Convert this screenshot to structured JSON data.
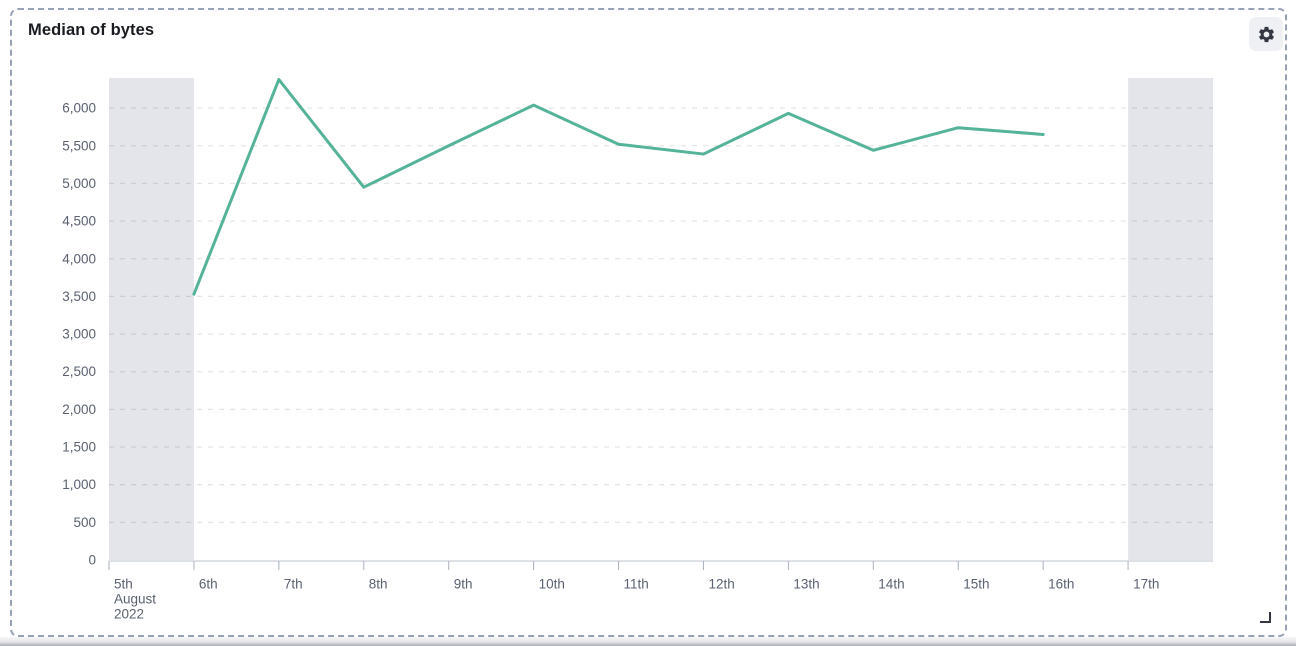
{
  "panel": {
    "title": "Median of bytes",
    "icons": {
      "settings": "gear-icon",
      "resize": "resize-handle"
    },
    "border_color": "#97a2b6"
  },
  "chart_data": {
    "type": "line",
    "title": "Median of bytes",
    "xlabel": "",
    "ylabel": "",
    "legend": "none",
    "grid": "horizontal-dashed",
    "x_categories": [
      "5th",
      "6th",
      "7th",
      "8th",
      "9th",
      "10th",
      "11th",
      "12th",
      "13th",
      "14th",
      "15th",
      "16th",
      "17th"
    ],
    "x_first_label_extra_lines": [
      "August",
      "2022"
    ],
    "y_ticks": [
      0,
      500,
      1000,
      1500,
      2000,
      2500,
      3000,
      3500,
      4000,
      4500,
      5000,
      5500,
      6000
    ],
    "ylim": [
      0,
      6400
    ],
    "series": [
      {
        "name": "Median of bytes",
        "color": "#54B399",
        "line_width": 3,
        "points": [
          {
            "x": "6th",
            "y": 3530
          },
          {
            "x": "7th",
            "y": 6380
          },
          {
            "x": "8th",
            "y": 4950
          },
          {
            "x": "9th",
            "y": 5500
          },
          {
            "x": "10th",
            "y": 6040
          },
          {
            "x": "11th",
            "y": 5520
          },
          {
            "x": "12th",
            "y": 5390
          },
          {
            "x": "13th",
            "y": 5930
          },
          {
            "x": "14th",
            "y": 5440
          },
          {
            "x": "15th",
            "y": 5740
          },
          {
            "x": "16th",
            "y": 5650
          }
        ]
      }
    ],
    "partial_bucket_bands": [
      {
        "from": "5th",
        "to": "6th"
      },
      {
        "from": "17th",
        "to": "end"
      }
    ],
    "colors": {
      "band": "#e3e5ea",
      "gridline": "rgba(0,0,0,0.10)",
      "axis_line": "#d4d7de",
      "tick_mark": "#a9b0bd",
      "axis_text": "#5a6170"
    }
  }
}
